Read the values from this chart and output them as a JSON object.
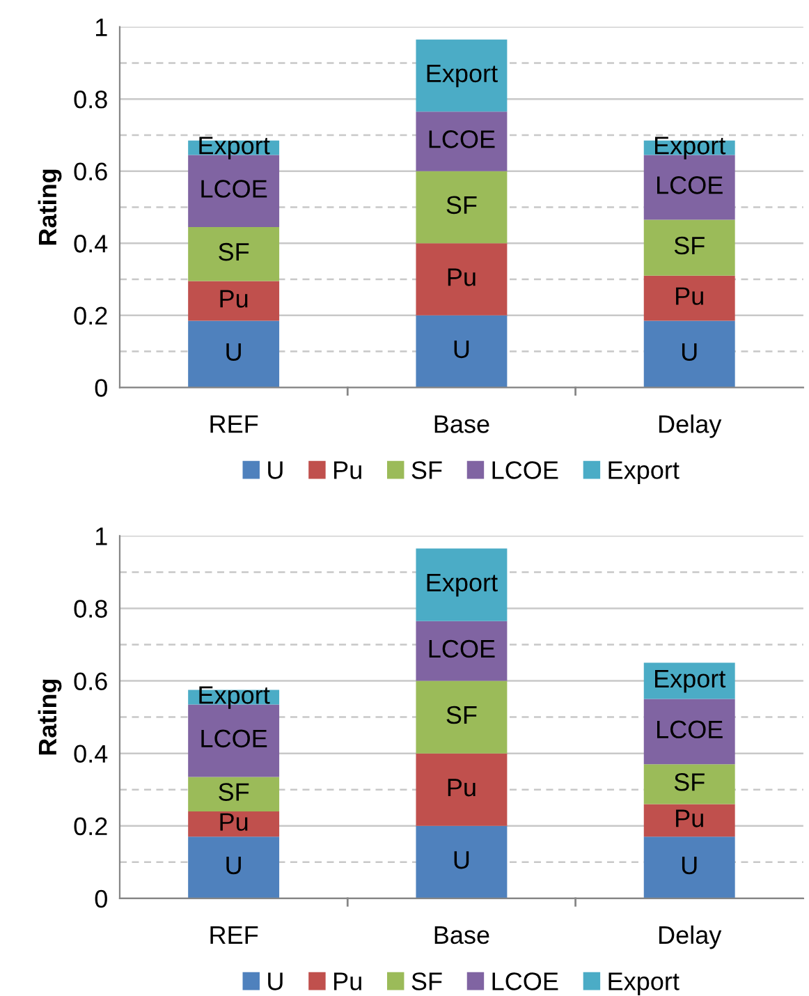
{
  "chart_data": [
    {
      "type": "bar",
      "stacked": true,
      "ylabel": "Rating",
      "categories": [
        "REF",
        "Base",
        "Delay"
      ],
      "series": [
        {
          "name": "U",
          "color": "#4f81bd",
          "values": [
            0.185,
            0.2,
            0.185
          ]
        },
        {
          "name": "Pu",
          "color": "#c0504d",
          "values": [
            0.11,
            0.2,
            0.125
          ]
        },
        {
          "name": "SF",
          "color": "#9bbb59",
          "values": [
            0.15,
            0.2,
            0.155
          ]
        },
        {
          "name": "LCOE",
          "color": "#8064a2",
          "values": [
            0.2,
            0.165,
            0.18
          ]
        },
        {
          "name": "Export",
          "color": "#4bacc6",
          "values": [
            0.04,
            0.2,
            0.04
          ]
        }
      ],
      "ylim": [
        0,
        1
      ],
      "yticks": [
        0,
        {
          "value": 0.1,
          "label": null
        },
        0.2,
        {
          "value": 0.3,
          "label": null
        },
        0.4,
        {
          "value": 0.5,
          "label": null
        },
        0.6,
        {
          "value": 0.7,
          "label": null
        },
        0.8,
        {
          "value": 0.9,
          "label": null
        },
        1
      ],
      "grid": "y",
      "legend": "bottom"
    },
    {
      "type": "bar",
      "stacked": true,
      "ylabel": "Rating",
      "categories": [
        "REF",
        "Base",
        "Delay"
      ],
      "series": [
        {
          "name": "U",
          "color": "#4f81bd",
          "values": [
            0.17,
            0.2,
            0.17
          ]
        },
        {
          "name": "Pu",
          "color": "#c0504d",
          "values": [
            0.07,
            0.2,
            0.09
          ]
        },
        {
          "name": "SF",
          "color": "#9bbb59",
          "values": [
            0.095,
            0.2,
            0.11
          ]
        },
        {
          "name": "LCOE",
          "color": "#8064a2",
          "values": [
            0.2,
            0.165,
            0.18
          ]
        },
        {
          "name": "Export",
          "color": "#4bacc6",
          "values": [
            0.04,
            0.2,
            0.1
          ]
        }
      ],
      "ylim": [
        0,
        1
      ],
      "yticks": [
        0,
        {
          "value": 0.1,
          "label": null
        },
        0.2,
        {
          "value": 0.3,
          "label": null
        },
        0.4,
        {
          "value": 0.5,
          "label": null
        },
        0.6,
        {
          "value": 0.7,
          "label": null
        },
        0.8,
        {
          "value": 0.9,
          "label": null
        },
        1
      ],
      "grid": "y",
      "legend": "bottom"
    }
  ]
}
